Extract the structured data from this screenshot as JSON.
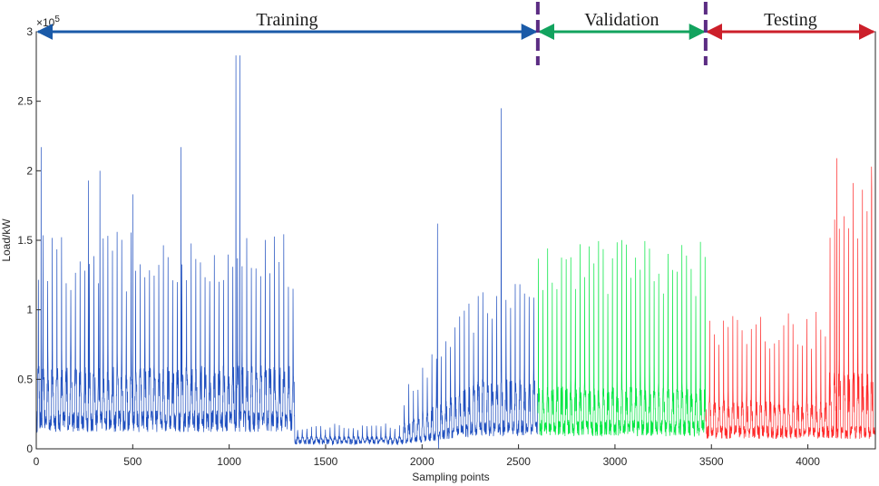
{
  "chart_data": {
    "type": "line",
    "title": "",
    "xlabel": "Sampling points",
    "ylabel": "Load/kW",
    "xlim": [
      0,
      4350
    ],
    "ylim": [
      0,
      300000
    ],
    "x_ticks": [
      "0",
      "500",
      "1000",
      "1500",
      "2000",
      "2500",
      "3000",
      "3500",
      "4000"
    ],
    "y_ticks": [
      "0",
      "0.5",
      "1",
      "1.5",
      "2",
      "2.5",
      "3"
    ],
    "y_multiplier": "×10",
    "y_multiplier_exp": "5",
    "grid": false,
    "segments": [
      {
        "label": "Training",
        "start": 0,
        "end": 2600,
        "color": "#1f4fbf",
        "arrow_color": "#1a5aa8"
      },
      {
        "label": "Validation",
        "start": 2600,
        "end": 3470,
        "color": "#00e640",
        "arrow_color": "#12a35e"
      },
      {
        "label": "Testing",
        "start": 3470,
        "end": 4350,
        "color": "#ff2a2a",
        "arrow_color": "#cc1f2a"
      }
    ],
    "dividers": [
      2600,
      3470
    ],
    "divider_color": "#5b2c83",
    "daily_profile": [
      {
        "range": [
          0,
          1340
        ],
        "peak": 145000,
        "base": 20000,
        "mid": 60000
      },
      {
        "range": [
          1340,
          1900
        ],
        "peak": 17000,
        "base": 5000,
        "mid": 9000
      },
      {
        "range": [
          1900,
          2600
        ],
        "peak": 110000,
        "base": 15000,
        "mid": 50000
      },
      {
        "range": [
          2600,
          3470
        ],
        "peak": 140000,
        "base": 15000,
        "mid": 45000
      },
      {
        "range": [
          3470,
          4100
        ],
        "peak": 92000,
        "base": 12000,
        "mid": 35000
      },
      {
        "range": [
          4100,
          4350
        ],
        "peak": 185000,
        "base": 12000,
        "mid": 55000
      }
    ],
    "spikes": [
      {
        "x": 25,
        "y": 217000
      },
      {
        "x": 270,
        "y": 193000
      },
      {
        "x": 330,
        "y": 200000
      },
      {
        "x": 500,
        "y": 183000
      },
      {
        "x": 750,
        "y": 217000
      },
      {
        "x": 1035,
        "y": 283000
      },
      {
        "x": 1055,
        "y": 283000
      },
      {
        "x": 2080,
        "y": 162000
      },
      {
        "x": 2410,
        "y": 245000
      },
      {
        "x": 4150,
        "y": 209000
      },
      {
        "x": 4330,
        "y": 203000
      },
      {
        "x": 2085,
        "y": 0
      }
    ]
  }
}
